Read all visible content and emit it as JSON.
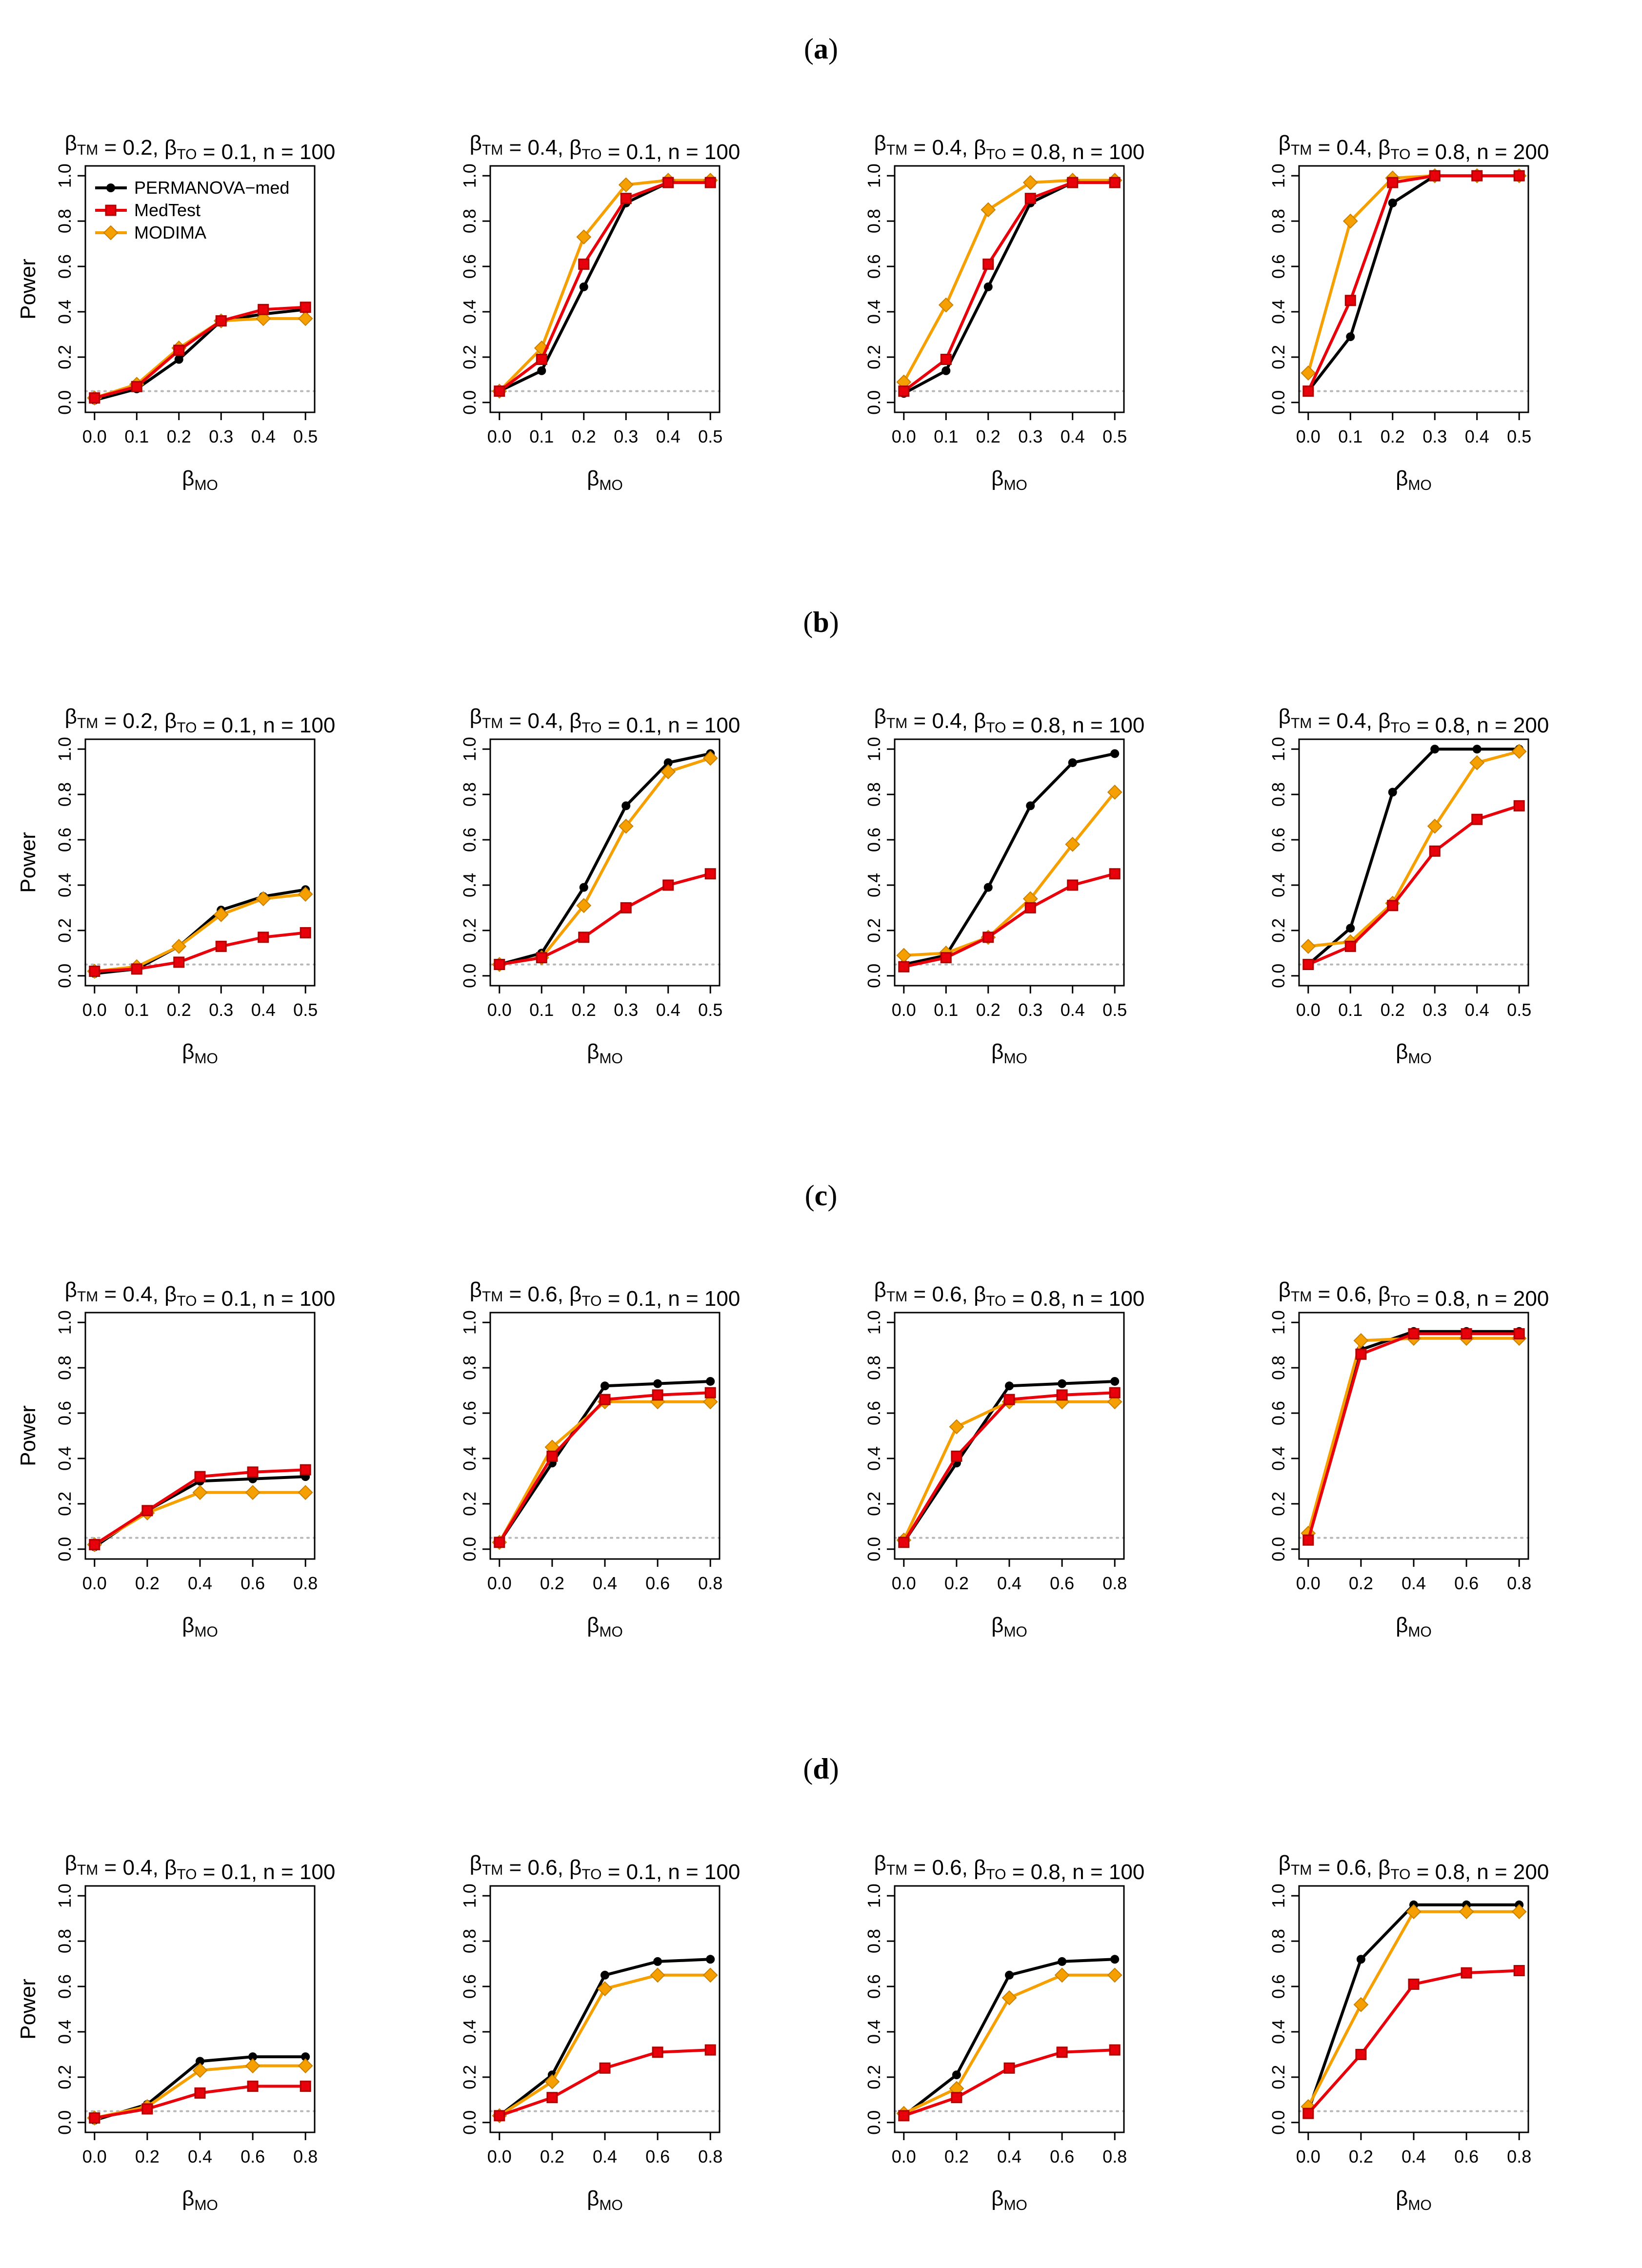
{
  "figure": {
    "y_label": "Power",
    "x_label": {
      "beta": "β",
      "sub": "MO"
    },
    "legend": [
      {
        "name": "PERMANOVA−med",
        "color": "#000000",
        "marker": "circle"
      },
      {
        "name": "MedTest",
        "color": "#e8000b",
        "marker": "square"
      },
      {
        "name": "MODIMA",
        "color": "#f5a000",
        "marker": "diamond"
      }
    ],
    "reference_line": {
      "value": 0.05,
      "color": "#b8b8b8"
    }
  },
  "rows": [
    {
      "letter": "a",
      "x_ticks": [
        0.0,
        0.1,
        0.2,
        0.3,
        0.4,
        0.5
      ],
      "x_tick_labels": [
        "0.0",
        "0.1",
        "0.2",
        "0.3",
        "0.4",
        "0.5"
      ]
    },
    {
      "letter": "b",
      "x_ticks": [
        0.0,
        0.1,
        0.2,
        0.3,
        0.4,
        0.5
      ],
      "x_tick_labels": [
        "0.0",
        "0.1",
        "0.2",
        "0.3",
        "0.4",
        "0.5"
      ]
    },
    {
      "letter": "c",
      "x_ticks": [
        0.0,
        0.2,
        0.4,
        0.6,
        0.8
      ],
      "x_tick_labels": [
        "0.0",
        "0.2",
        "0.4",
        "0.6",
        "0.8"
      ]
    },
    {
      "letter": "d",
      "x_ticks": [
        0.0,
        0.2,
        0.4,
        0.6,
        0.8
      ],
      "x_tick_labels": [
        "0.0",
        "0.2",
        "0.4",
        "0.6",
        "0.8"
      ]
    }
  ],
  "chart_data": [
    {
      "type": "line",
      "row": "a",
      "title": {
        "b_tm": "0.2",
        "b_to": "0.1",
        "n": "100"
      },
      "x": [
        0,
        0.1,
        0.2,
        0.3,
        0.4,
        0.5
      ],
      "xlim": [
        0,
        0.5
      ],
      "ylim": [
        0,
        1
      ],
      "series": [
        {
          "name": "PERMANOVA−med",
          "values": [
            0.01,
            0.06,
            0.19,
            0.36,
            0.39,
            0.41
          ]
        },
        {
          "name": "MedTest",
          "values": [
            0.02,
            0.07,
            0.23,
            0.36,
            0.41,
            0.42
          ]
        },
        {
          "name": "MODIMA",
          "values": [
            0.02,
            0.08,
            0.24,
            0.36,
            0.37,
            0.37
          ]
        }
      ]
    },
    {
      "type": "line",
      "row": "a",
      "title": {
        "b_tm": "0.4",
        "b_to": "0.1",
        "n": "100"
      },
      "x": [
        0,
        0.1,
        0.2,
        0.3,
        0.4,
        0.5
      ],
      "xlim": [
        0,
        0.5
      ],
      "ylim": [
        0,
        1
      ],
      "series": [
        {
          "name": "PERMANOVA−med",
          "values": [
            0.05,
            0.14,
            0.51,
            0.88,
            0.97,
            0.98
          ]
        },
        {
          "name": "MedTest",
          "values": [
            0.05,
            0.19,
            0.61,
            0.9,
            0.97,
            0.97
          ]
        },
        {
          "name": "MODIMA",
          "values": [
            0.05,
            0.24,
            0.73,
            0.96,
            0.98,
            0.98
          ]
        }
      ]
    },
    {
      "type": "line",
      "row": "a",
      "title": {
        "b_tm": "0.4",
        "b_to": "0.8",
        "n": "100"
      },
      "x": [
        0,
        0.1,
        0.2,
        0.3,
        0.4,
        0.5
      ],
      "xlim": [
        0,
        0.5
      ],
      "ylim": [
        0,
        1
      ],
      "series": [
        {
          "name": "PERMANOVA−med",
          "values": [
            0.04,
            0.14,
            0.51,
            0.88,
            0.97,
            0.98
          ]
        },
        {
          "name": "MedTest",
          "values": [
            0.05,
            0.19,
            0.61,
            0.9,
            0.97,
            0.97
          ]
        },
        {
          "name": "MODIMA",
          "values": [
            0.09,
            0.43,
            0.85,
            0.97,
            0.98,
            0.98
          ]
        }
      ]
    },
    {
      "type": "line",
      "row": "a",
      "title": {
        "b_tm": "0.4",
        "b_to": "0.8",
        "n": "200"
      },
      "x": [
        0,
        0.1,
        0.2,
        0.3,
        0.4,
        0.5
      ],
      "xlim": [
        0,
        0.5
      ],
      "ylim": [
        0,
        1
      ],
      "series": [
        {
          "name": "PERMANOVA−med",
          "values": [
            0.05,
            0.29,
            0.88,
            1.0,
            1.0,
            1.0
          ]
        },
        {
          "name": "MedTest",
          "values": [
            0.05,
            0.45,
            0.97,
            1.0,
            1.0,
            1.0
          ]
        },
        {
          "name": "MODIMA",
          "values": [
            0.13,
            0.8,
            0.99,
            1.0,
            1.0,
            1.0
          ]
        }
      ]
    },
    {
      "type": "line",
      "row": "b",
      "title": {
        "b_tm": "0.2",
        "b_to": "0.1",
        "n": "100"
      },
      "x": [
        0,
        0.1,
        0.2,
        0.3,
        0.4,
        0.5
      ],
      "xlim": [
        0,
        0.5
      ],
      "ylim": [
        0,
        1
      ],
      "series": [
        {
          "name": "PERMANOVA−med",
          "values": [
            0.01,
            0.03,
            0.13,
            0.29,
            0.35,
            0.38
          ]
        },
        {
          "name": "MedTest",
          "values": [
            0.02,
            0.03,
            0.06,
            0.13,
            0.17,
            0.19
          ]
        },
        {
          "name": "MODIMA",
          "values": [
            0.02,
            0.04,
            0.13,
            0.27,
            0.34,
            0.36
          ]
        }
      ]
    },
    {
      "type": "line",
      "row": "b",
      "title": {
        "b_tm": "0.4",
        "b_to": "0.1",
        "n": "100"
      },
      "x": [
        0,
        0.1,
        0.2,
        0.3,
        0.4,
        0.5
      ],
      "xlim": [
        0,
        0.5
      ],
      "ylim": [
        0,
        1
      ],
      "series": [
        {
          "name": "PERMANOVA−med",
          "values": [
            0.05,
            0.1,
            0.39,
            0.75,
            0.94,
            0.98
          ]
        },
        {
          "name": "MedTest",
          "values": [
            0.05,
            0.08,
            0.17,
            0.3,
            0.4,
            0.45
          ]
        },
        {
          "name": "MODIMA",
          "values": [
            0.05,
            0.08,
            0.31,
            0.66,
            0.9,
            0.96
          ]
        }
      ]
    },
    {
      "type": "line",
      "row": "b",
      "title": {
        "b_tm": "0.4",
        "b_to": "0.8",
        "n": "100"
      },
      "x": [
        0,
        0.1,
        0.2,
        0.3,
        0.4,
        0.5
      ],
      "xlim": [
        0,
        0.5
      ],
      "ylim": [
        0,
        1
      ],
      "series": [
        {
          "name": "PERMANOVA−med",
          "values": [
            0.05,
            0.09,
            0.39,
            0.75,
            0.94,
            0.98
          ]
        },
        {
          "name": "MedTest",
          "values": [
            0.04,
            0.08,
            0.17,
            0.3,
            0.4,
            0.45
          ]
        },
        {
          "name": "MODIMA",
          "values": [
            0.09,
            0.1,
            0.17,
            0.34,
            0.58,
            0.81
          ]
        }
      ]
    },
    {
      "type": "line",
      "row": "b",
      "title": {
        "b_tm": "0.4",
        "b_to": "0.8",
        "n": "200"
      },
      "x": [
        0,
        0.1,
        0.2,
        0.3,
        0.4,
        0.5
      ],
      "xlim": [
        0,
        0.5
      ],
      "ylim": [
        0,
        1
      ],
      "series": [
        {
          "name": "PERMANOVA−med",
          "values": [
            0.05,
            0.21,
            0.81,
            1.0,
            1.0,
            1.0
          ]
        },
        {
          "name": "MedTest",
          "values": [
            0.05,
            0.13,
            0.31,
            0.55,
            0.69,
            0.75
          ]
        },
        {
          "name": "MODIMA",
          "values": [
            0.13,
            0.15,
            0.32,
            0.66,
            0.94,
            0.99
          ]
        }
      ]
    },
    {
      "type": "line",
      "row": "c",
      "title": {
        "b_tm": "0.4",
        "b_to": "0.1",
        "n": "100"
      },
      "x": [
        0,
        0.2,
        0.4,
        0.6,
        0.8
      ],
      "xlim": [
        0,
        0.8
      ],
      "ylim": [
        0,
        1
      ],
      "series": [
        {
          "name": "PERMANOVA−med",
          "values": [
            0.01,
            0.17,
            0.3,
            0.31,
            0.32
          ]
        },
        {
          "name": "MedTest",
          "values": [
            0.02,
            0.17,
            0.32,
            0.34,
            0.35
          ]
        },
        {
          "name": "MODIMA",
          "values": [
            0.02,
            0.16,
            0.25,
            0.25,
            0.25
          ]
        }
      ]
    },
    {
      "type": "line",
      "row": "c",
      "title": {
        "b_tm": "0.6",
        "b_to": "0.1",
        "n": "100"
      },
      "x": [
        0,
        0.2,
        0.4,
        0.6,
        0.8
      ],
      "xlim": [
        0,
        0.8
      ],
      "ylim": [
        0,
        1
      ],
      "series": [
        {
          "name": "PERMANOVA−med",
          "values": [
            0.03,
            0.38,
            0.72,
            0.73,
            0.74
          ]
        },
        {
          "name": "MedTest",
          "values": [
            0.03,
            0.41,
            0.66,
            0.68,
            0.69
          ]
        },
        {
          "name": "MODIMA",
          "values": [
            0.03,
            0.45,
            0.65,
            0.65,
            0.65
          ]
        }
      ]
    },
    {
      "type": "line",
      "row": "c",
      "title": {
        "b_tm": "0.6",
        "b_to": "0.8",
        "n": "100"
      },
      "x": [
        0,
        0.2,
        0.4,
        0.6,
        0.8
      ],
      "xlim": [
        0,
        0.8
      ],
      "ylim": [
        0,
        1
      ],
      "series": [
        {
          "name": "PERMANOVA−med",
          "values": [
            0.03,
            0.38,
            0.72,
            0.73,
            0.74
          ]
        },
        {
          "name": "MedTest",
          "values": [
            0.03,
            0.41,
            0.66,
            0.68,
            0.69
          ]
        },
        {
          "name": "MODIMA",
          "values": [
            0.04,
            0.54,
            0.65,
            0.65,
            0.65
          ]
        }
      ]
    },
    {
      "type": "line",
      "row": "c",
      "title": {
        "b_tm": "0.6",
        "b_to": "0.8",
        "n": "200"
      },
      "x": [
        0,
        0.2,
        0.4,
        0.6,
        0.8
      ],
      "xlim": [
        0,
        0.8
      ],
      "ylim": [
        0,
        1
      ],
      "series": [
        {
          "name": "PERMANOVA−med",
          "values": [
            0.05,
            0.88,
            0.96,
            0.96,
            0.96
          ]
        },
        {
          "name": "MedTest",
          "values": [
            0.04,
            0.86,
            0.95,
            0.95,
            0.95
          ]
        },
        {
          "name": "MODIMA",
          "values": [
            0.07,
            0.92,
            0.93,
            0.93,
            0.93
          ]
        }
      ]
    },
    {
      "type": "line",
      "row": "d",
      "title": {
        "b_tm": "0.4",
        "b_to": "0.1",
        "n": "100"
      },
      "x": [
        0,
        0.2,
        0.4,
        0.6,
        0.8
      ],
      "xlim": [
        0,
        0.8
      ],
      "ylim": [
        0,
        1
      ],
      "series": [
        {
          "name": "PERMANOVA−med",
          "values": [
            0.01,
            0.08,
            0.27,
            0.29,
            0.29
          ]
        },
        {
          "name": "MedTest",
          "values": [
            0.02,
            0.06,
            0.13,
            0.16,
            0.16
          ]
        },
        {
          "name": "MODIMA",
          "values": [
            0.02,
            0.07,
            0.23,
            0.25,
            0.25
          ]
        }
      ]
    },
    {
      "type": "line",
      "row": "d",
      "title": {
        "b_tm": "0.6",
        "b_to": "0.1",
        "n": "100"
      },
      "x": [
        0,
        0.2,
        0.4,
        0.6,
        0.8
      ],
      "xlim": [
        0,
        0.8
      ],
      "ylim": [
        0,
        1
      ],
      "series": [
        {
          "name": "PERMANOVA−med",
          "values": [
            0.03,
            0.21,
            0.65,
            0.71,
            0.72
          ]
        },
        {
          "name": "MedTest",
          "values": [
            0.03,
            0.11,
            0.24,
            0.31,
            0.32
          ]
        },
        {
          "name": "MODIMA",
          "values": [
            0.03,
            0.18,
            0.59,
            0.65,
            0.65
          ]
        }
      ]
    },
    {
      "type": "line",
      "row": "d",
      "title": {
        "b_tm": "0.6",
        "b_to": "0.8",
        "n": "100"
      },
      "x": [
        0,
        0.2,
        0.4,
        0.6,
        0.8
      ],
      "xlim": [
        0,
        0.8
      ],
      "ylim": [
        0,
        1
      ],
      "series": [
        {
          "name": "PERMANOVA−med",
          "values": [
            0.03,
            0.21,
            0.65,
            0.71,
            0.72
          ]
        },
        {
          "name": "MedTest",
          "values": [
            0.03,
            0.11,
            0.24,
            0.31,
            0.32
          ]
        },
        {
          "name": "MODIMA",
          "values": [
            0.04,
            0.15,
            0.55,
            0.65,
            0.65
          ]
        }
      ]
    },
    {
      "type": "line",
      "row": "d",
      "title": {
        "b_tm": "0.6",
        "b_to": "0.8",
        "n": "200"
      },
      "x": [
        0,
        0.2,
        0.4,
        0.6,
        0.8
      ],
      "xlim": [
        0,
        0.8
      ],
      "ylim": [
        0,
        1
      ],
      "series": [
        {
          "name": "PERMANOVA−med",
          "values": [
            0.05,
            0.72,
            0.96,
            0.96,
            0.96
          ]
        },
        {
          "name": "MedTest",
          "values": [
            0.04,
            0.3,
            0.61,
            0.66,
            0.67
          ]
        },
        {
          "name": "MODIMA",
          "values": [
            0.07,
            0.52,
            0.93,
            0.93,
            0.93
          ]
        }
      ]
    }
  ],
  "y_ticks": [
    0.0,
    0.2,
    0.4,
    0.6,
    0.8,
    1.0
  ],
  "y_tick_labels": [
    "0.0",
    "0.2",
    "0.4",
    "0.6",
    "0.8",
    "1.0"
  ]
}
